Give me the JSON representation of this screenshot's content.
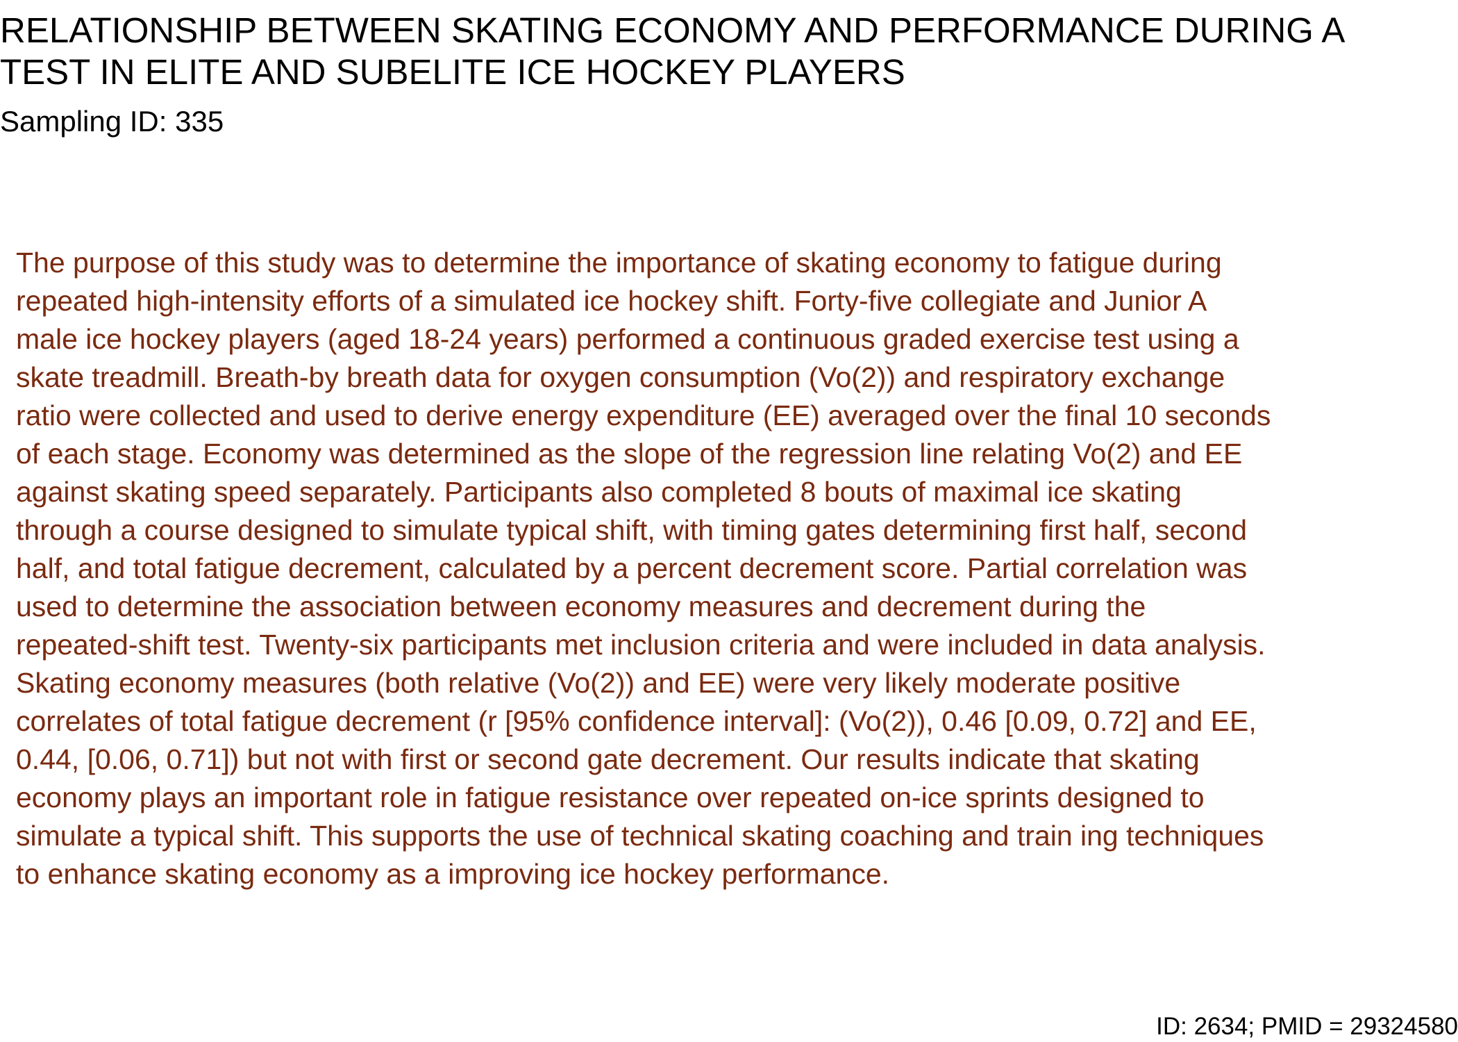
{
  "header": {
    "title_lines": [
      "RELATIONSHIP BETWEEN SKATING ECONOMY AND PERFORMANCE DURING A",
      "TEST IN ELITE AND SUBELITE ICE HOCKEY PLAYERS"
    ],
    "sampling_id": "Sampling ID: 335"
  },
  "abstract": {
    "lines": [
      "The purpose of this study was to determine the importance of skating economy to fatigue during",
      "repeated high-intensity efforts of a simulated ice hockey shift. Forty-five collegiate and Junior A",
      "male ice hockey players (aged 18-24 years) performed a continuous graded exercise test using a",
      "skate treadmill. Breath-by breath data for oxygen consumption (Vo(2)) and respiratory exchange",
      "ratio were collected and used to derive energy expenditure (EE) averaged over the final 10 seconds",
      "of each stage. Economy was determined as the slope of the regression line relating Vo(2) and EE",
      "against skating speed separately. Participants also completed 8 bouts of maximal ice skating",
      "through a course designed to simulate typical shift, with timing gates determining first half, second",
      "half, and total fatigue decrement, calculated by a percent decrement score. Partial correlation was",
      "used to determine the association between economy measures and decrement during the",
      "repeated-shift test. Twenty-six participants met inclusion criteria and were included in data analysis.",
      "Skating economy measures (both relative (Vo(2)) and EE) were very likely moderate positive",
      "correlates of total fatigue decrement (r [95% confidence interval]: (Vo(2)), 0.46 [0.09, 0.72] and EE,",
      "0.44, [0.06, 0.71]) but not with first or second gate decrement. Our results indicate that skating",
      "economy plays an important role in fatigue resistance over repeated on-ice sprints designed to",
      "simulate a typical shift. This supports the use of technical skating coaching and train ing techniques",
      "to enhance skating economy as a improving ice hockey performance."
    ]
  },
  "footer": {
    "id": "ID: 2634; PMID = 29324580"
  }
}
